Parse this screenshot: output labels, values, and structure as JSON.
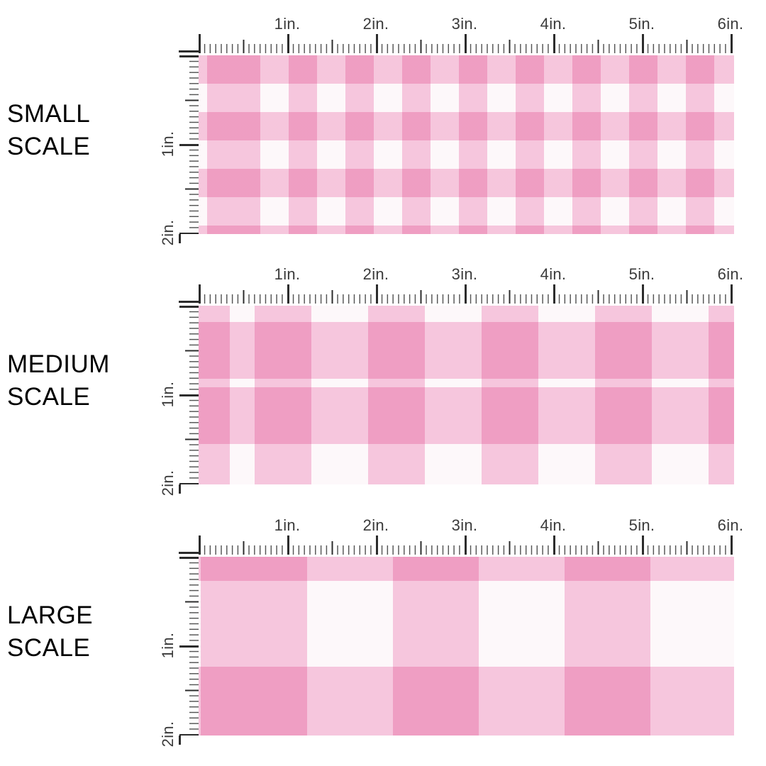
{
  "page": {
    "description": "Pink gingham fabric pattern scale reference with inch rulers"
  },
  "colors": {
    "stripe_pink": "#F8CCE1",
    "base_white": "#FDF8FA",
    "gingham_dark_pink": "#F094C1",
    "gingham_light_pink": "#F8CFE3",
    "tick_dark": "#2C2C2C",
    "tick_minor": "#565656",
    "ruler_text": "#3B3B3B",
    "label_text": "#000000",
    "page_bg": "#FFFFFF"
  },
  "ruler": {
    "h_labels": [
      "1in.",
      "2in.",
      "3in.",
      "4in.",
      "5in.",
      "6in."
    ],
    "v_labels": [
      "1in.",
      "2in."
    ]
  },
  "sections": [
    {
      "name": "small-scale",
      "lines": [
        "SMALL",
        "SCALE"
      ]
    },
    {
      "name": "medium-scale",
      "lines": [
        "MEDIUM",
        "SCALE"
      ]
    },
    {
      "name": "large-scale",
      "lines": [
        "LARGE",
        "SCALE"
      ]
    }
  ]
}
